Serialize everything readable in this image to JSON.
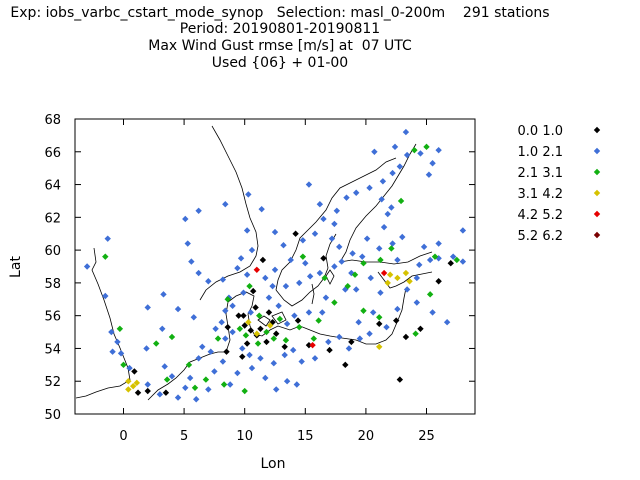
{
  "header": {
    "line1": "Exp: iobs_varbc_cstart_mode_synop   Selection: masl_0-200m    291 stations",
    "line2": "Period: 20190801-20190811",
    "line3": "Max Wind Gust rmse [m/s] at  07 UTC",
    "line4": "Used {06} + 01-00"
  },
  "chart_data": {
    "type": "scatter",
    "title": "Max Wind Gust rmse [m/s] at  07 UTC",
    "xlabel": "Lon",
    "ylabel": "Lat",
    "xlim": [
      -4,
      29
    ],
    "ylim": [
      50,
      68
    ],
    "xticks": [
      0,
      5,
      10,
      15,
      20,
      25
    ],
    "yticks": [
      50,
      52,
      54,
      56,
      58,
      60,
      62,
      64,
      66,
      68
    ],
    "legend_position": "right",
    "series": [
      {
        "name": "0.0 1.0",
        "color": "#000000",
        "points": [
          [
            14.2,
            61.0
          ],
          [
            22.5,
            55.7
          ],
          [
            26.0,
            58.1
          ],
          [
            27.0,
            59.2
          ],
          [
            22.8,
            52.1
          ],
          [
            18.3,
            53.0
          ],
          [
            17.0,
            53.9
          ],
          [
            23.3,
            54.7
          ],
          [
            10.0,
            55.4
          ],
          [
            10.5,
            55.1
          ],
          [
            11.0,
            54.8
          ],
          [
            9.5,
            56.0
          ],
          [
            12.3,
            55.6
          ],
          [
            11.8,
            54.4
          ],
          [
            13.3,
            54.1
          ],
          [
            8.6,
            55.3
          ],
          [
            10.9,
            56.5
          ],
          [
            12.0,
            56.2
          ],
          [
            14.4,
            55.7
          ],
          [
            15.3,
            54.2
          ],
          [
            2.0,
            51.4
          ],
          [
            1.2,
            51.3
          ],
          [
            3.5,
            51.3
          ],
          [
            0.9,
            52.6
          ],
          [
            9.8,
            53.5
          ],
          [
            10.2,
            54.3
          ],
          [
            11.3,
            55.2
          ],
          [
            12.6,
            54.9
          ],
          [
            10.7,
            57.5
          ],
          [
            9.9,
            56.0
          ],
          [
            18.8,
            54.4
          ],
          [
            21.1,
            55.5
          ],
          [
            24.5,
            55.2
          ],
          [
            16.5,
            59.5
          ],
          [
            11.5,
            59.4
          ],
          [
            8.5,
            53.8
          ]
        ]
      },
      {
        "name": "1.0 2.1",
        "color": "#3f6fd7",
        "points": [
          [
            -1.3,
            60.7
          ],
          [
            -3.0,
            59.0
          ],
          [
            -1.5,
            57.2
          ],
          [
            -1.0,
            55.0
          ],
          [
            -0.2,
            53.7
          ],
          [
            0.5,
            52.8
          ],
          [
            2.0,
            51.8
          ],
          [
            3.0,
            51.2
          ],
          [
            4.5,
            51.0
          ],
          [
            5.5,
            52.2
          ],
          [
            6.2,
            53.4
          ],
          [
            7.5,
            52.6
          ],
          [
            8.2,
            53.2
          ],
          [
            9.4,
            52.5
          ],
          [
            10.6,
            52.8
          ],
          [
            11.7,
            52.2
          ],
          [
            12.6,
            51.5
          ],
          [
            13.5,
            52.0
          ],
          [
            14.3,
            51.8
          ],
          [
            8.8,
            51.8
          ],
          [
            7.0,
            51.5
          ],
          [
            6.0,
            50.9
          ],
          [
            5.1,
            51.6
          ],
          [
            4.0,
            52.3
          ],
          [
            3.4,
            52.9
          ],
          [
            6.5,
            54.1
          ],
          [
            7.2,
            53.8
          ],
          [
            8.4,
            54.6
          ],
          [
            9.0,
            55.0
          ],
          [
            9.8,
            54.0
          ],
          [
            10.4,
            53.6
          ],
          [
            11.3,
            53.4
          ],
          [
            12.4,
            53.1
          ],
          [
            13.3,
            53.6
          ],
          [
            14.0,
            53.9
          ],
          [
            14.7,
            53.2
          ],
          [
            15.8,
            53.4
          ],
          [
            16.9,
            54.4
          ],
          [
            17.8,
            54.7
          ],
          [
            18.6,
            54.0
          ],
          [
            19.5,
            54.6
          ],
          [
            20.3,
            54.9
          ],
          [
            21.7,
            55.3
          ],
          [
            22.6,
            56.4
          ],
          [
            23.4,
            57.6
          ],
          [
            24.2,
            56.8
          ],
          [
            25.5,
            56.2
          ],
          [
            26.7,
            55.6
          ],
          [
            24.2,
            58.3
          ],
          [
            24.4,
            59.1
          ],
          [
            25.3,
            59.4
          ],
          [
            26.0,
            59.5
          ],
          [
            27.2,
            59.6
          ],
          [
            28.0,
            59.3
          ],
          [
            22.6,
            59.4
          ],
          [
            21.1,
            60.1
          ],
          [
            22.2,
            60.4
          ],
          [
            23.0,
            60.8
          ],
          [
            21.5,
            61.4
          ],
          [
            21.8,
            62.2
          ],
          [
            22.1,
            62.6
          ],
          [
            21.3,
            63.1
          ],
          [
            20.3,
            63.8
          ],
          [
            21.4,
            64.2
          ],
          [
            22.2,
            64.7
          ],
          [
            22.8,
            65.1
          ],
          [
            23.4,
            65.8
          ],
          [
            24.5,
            65.9
          ],
          [
            25.5,
            65.3
          ],
          [
            22.4,
            66.3
          ],
          [
            23.3,
            67.2
          ],
          [
            20.7,
            66.0
          ],
          [
            19.2,
            63.5
          ],
          [
            18.4,
            63.2
          ],
          [
            17.6,
            62.4
          ],
          [
            17.4,
            61.6
          ],
          [
            17.2,
            60.7
          ],
          [
            16.5,
            61.9
          ],
          [
            15.8,
            61.0
          ],
          [
            14.8,
            60.6
          ],
          [
            13.2,
            60.3
          ],
          [
            12.5,
            61.1
          ],
          [
            16.2,
            62.8
          ],
          [
            15.3,
            64.0
          ],
          [
            18.0,
            59.3
          ],
          [
            17.8,
            60.2
          ],
          [
            18.9,
            59.8
          ],
          [
            17.4,
            59.0
          ],
          [
            16.2,
            58.6
          ],
          [
            15.4,
            58.4
          ],
          [
            14.5,
            58.0
          ],
          [
            13.4,
            57.8
          ],
          [
            12.3,
            57.8
          ],
          [
            11.7,
            58.3
          ],
          [
            12.5,
            58.8
          ],
          [
            13.8,
            59.4
          ],
          [
            15.0,
            59.2
          ],
          [
            16.7,
            57.1
          ],
          [
            16.4,
            56.2
          ],
          [
            15.3,
            56.2
          ],
          [
            14.1,
            56.0
          ],
          [
            13.5,
            55.5
          ],
          [
            12.8,
            56.6
          ],
          [
            12.0,
            57.1
          ],
          [
            10.2,
            58.5
          ],
          [
            9.4,
            58.9
          ],
          [
            8.2,
            58.2
          ],
          [
            7.0,
            58.1
          ],
          [
            6.2,
            58.6
          ],
          [
            5.6,
            59.3
          ],
          [
            5.3,
            60.4
          ],
          [
            5.1,
            61.9
          ],
          [
            6.2,
            62.4
          ],
          [
            8.4,
            62.8
          ],
          [
            10.3,
            63.4
          ],
          [
            11.4,
            62.5
          ],
          [
            10.2,
            61.2
          ],
          [
            10.6,
            60.0
          ],
          [
            9.7,
            59.5
          ],
          [
            8.7,
            57.1
          ],
          [
            9.9,
            57.4
          ],
          [
            10.5,
            56.2
          ],
          [
            8.4,
            56.3
          ],
          [
            9.0,
            56.6
          ],
          [
            8.1,
            55.6
          ],
          [
            7.6,
            55.2
          ],
          [
            5.8,
            55.9
          ],
          [
            4.5,
            56.4
          ],
          [
            3.3,
            57.3
          ],
          [
            2.0,
            56.5
          ],
          [
            3.2,
            55.2
          ],
          [
            1.9,
            54.0
          ],
          [
            -0.5,
            54.4
          ],
          [
            -0.9,
            53.8
          ],
          [
            19.4,
            55.6
          ],
          [
            20.6,
            56.2
          ],
          [
            21.2,
            57.4
          ],
          [
            20.4,
            58.3
          ],
          [
            19.2,
            57.6
          ],
          [
            18.3,
            57.6
          ],
          [
            18.8,
            58.6
          ],
          [
            19.7,
            59.6
          ],
          [
            20.1,
            60.7
          ],
          [
            24.8,
            60.2
          ],
          [
            26.0,
            60.4
          ],
          [
            25.2,
            64.6
          ],
          [
            26.0,
            66.1
          ],
          [
            28.0,
            61.2
          ]
        ]
      },
      {
        "name": "2.1 3.1",
        "color": "#12b012",
        "points": [
          [
            -1.5,
            59.6
          ],
          [
            -0.3,
            55.2
          ],
          [
            0.0,
            53.0
          ],
          [
            2.7,
            54.3
          ],
          [
            4.0,
            54.7
          ],
          [
            5.4,
            53.0
          ],
          [
            6.8,
            52.1
          ],
          [
            8.3,
            51.8
          ],
          [
            10.0,
            51.4
          ],
          [
            7.8,
            54.6
          ],
          [
            8.6,
            57.0
          ],
          [
            10.4,
            57.8
          ],
          [
            11.2,
            56.0
          ],
          [
            11.8,
            55.0
          ],
          [
            12.4,
            54.6
          ],
          [
            13.4,
            54.5
          ],
          [
            14.5,
            55.3
          ],
          [
            15.7,
            54.6
          ],
          [
            16.1,
            55.7
          ],
          [
            17.4,
            56.8
          ],
          [
            18.5,
            57.8
          ],
          [
            19.1,
            58.5
          ],
          [
            19.8,
            59.2
          ],
          [
            21.2,
            59.4
          ],
          [
            22.1,
            60.1
          ],
          [
            22.9,
            63.0
          ],
          [
            24.0,
            66.1
          ],
          [
            25.0,
            66.3
          ],
          [
            25.7,
            59.6
          ],
          [
            27.5,
            59.4
          ],
          [
            9.6,
            55.2
          ],
          [
            10.1,
            54.8
          ],
          [
            11.1,
            54.3
          ],
          [
            12.9,
            55.8
          ],
          [
            16.6,
            58.3
          ],
          [
            14.8,
            59.6
          ],
          [
            19.8,
            56.3
          ],
          [
            3.6,
            52.1
          ],
          [
            5.9,
            51.6
          ],
          [
            21.1,
            55.9
          ],
          [
            24.1,
            54.9
          ],
          [
            25.3,
            57.3
          ]
        ]
      },
      {
        "name": "3.1 4.2",
        "color": "#d6c200",
        "points": [
          [
            0.4,
            52.0
          ],
          [
            0.8,
            51.7
          ],
          [
            0.4,
            51.5
          ],
          [
            1.1,
            51.9
          ],
          [
            21.1,
            54.1
          ],
          [
            21.8,
            58.0
          ],
          [
            22.0,
            58.5
          ],
          [
            22.6,
            58.3
          ],
          [
            23.3,
            58.6
          ],
          [
            23.6,
            58.1
          ],
          [
            10.3,
            55.6
          ],
          [
            11.0,
            54.9
          ],
          [
            12.1,
            55.4
          ]
        ]
      },
      {
        "name": "4.2 5.2",
        "color": "#e60000",
        "points": [
          [
            11.0,
            58.8
          ],
          [
            15.6,
            54.2
          ],
          [
            21.5,
            58.6
          ]
        ]
      },
      {
        "name": "5.2 6.2",
        "color": "#7a0000",
        "points": []
      }
    ]
  },
  "legend": {
    "entries": [
      {
        "label": "0.0 1.0",
        "color": "#000000"
      },
      {
        "label": "1.0 2.1",
        "color": "#3f6fd7"
      },
      {
        "label": "2.1 3.1",
        "color": "#12b012"
      },
      {
        "label": "3.1 4.2",
        "color": "#d6c200"
      },
      {
        "label": "4.2 5.2",
        "color": "#e60000"
      },
      {
        "label": "5.2 6.2",
        "color": "#7a0000"
      }
    ]
  }
}
